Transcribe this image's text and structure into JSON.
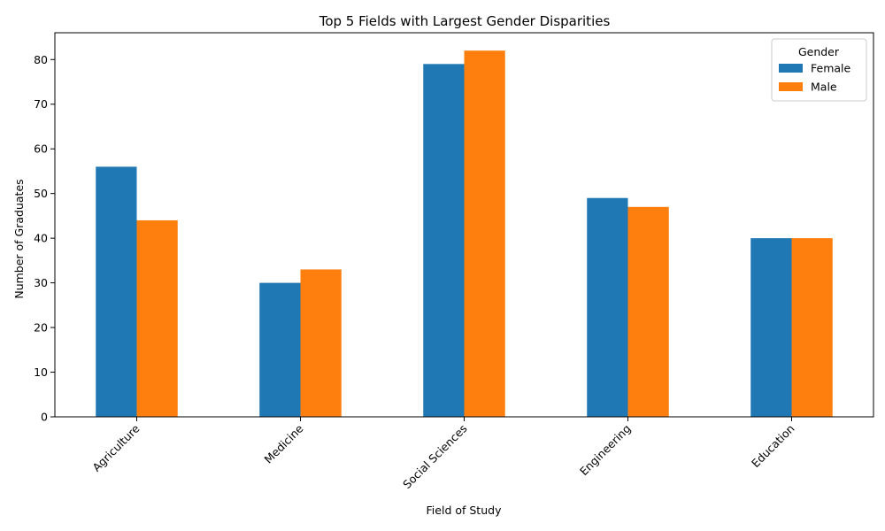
{
  "chart_data": {
    "type": "bar",
    "title": "Top 5 Fields with Largest Gender Disparities",
    "xlabel": "Field of Study",
    "ylabel": "Number of Graduates",
    "categories": [
      "Agriculture",
      "Medicine",
      "Social Sciences",
      "Engineering",
      "Education"
    ],
    "series": [
      {
        "name": "Female",
        "values": [
          56,
          30,
          79,
          49,
          40
        ],
        "color": "#1f77b4"
      },
      {
        "name": "Male",
        "values": [
          44,
          33,
          82,
          47,
          40
        ],
        "color": "#ff7f0e"
      }
    ],
    "ylim": [
      0,
      86
    ],
    "yticks": [
      0,
      10,
      20,
      30,
      40,
      50,
      60,
      70,
      80
    ],
    "grid": false,
    "legend": {
      "title": "Gender",
      "placement": "top-right"
    }
  }
}
